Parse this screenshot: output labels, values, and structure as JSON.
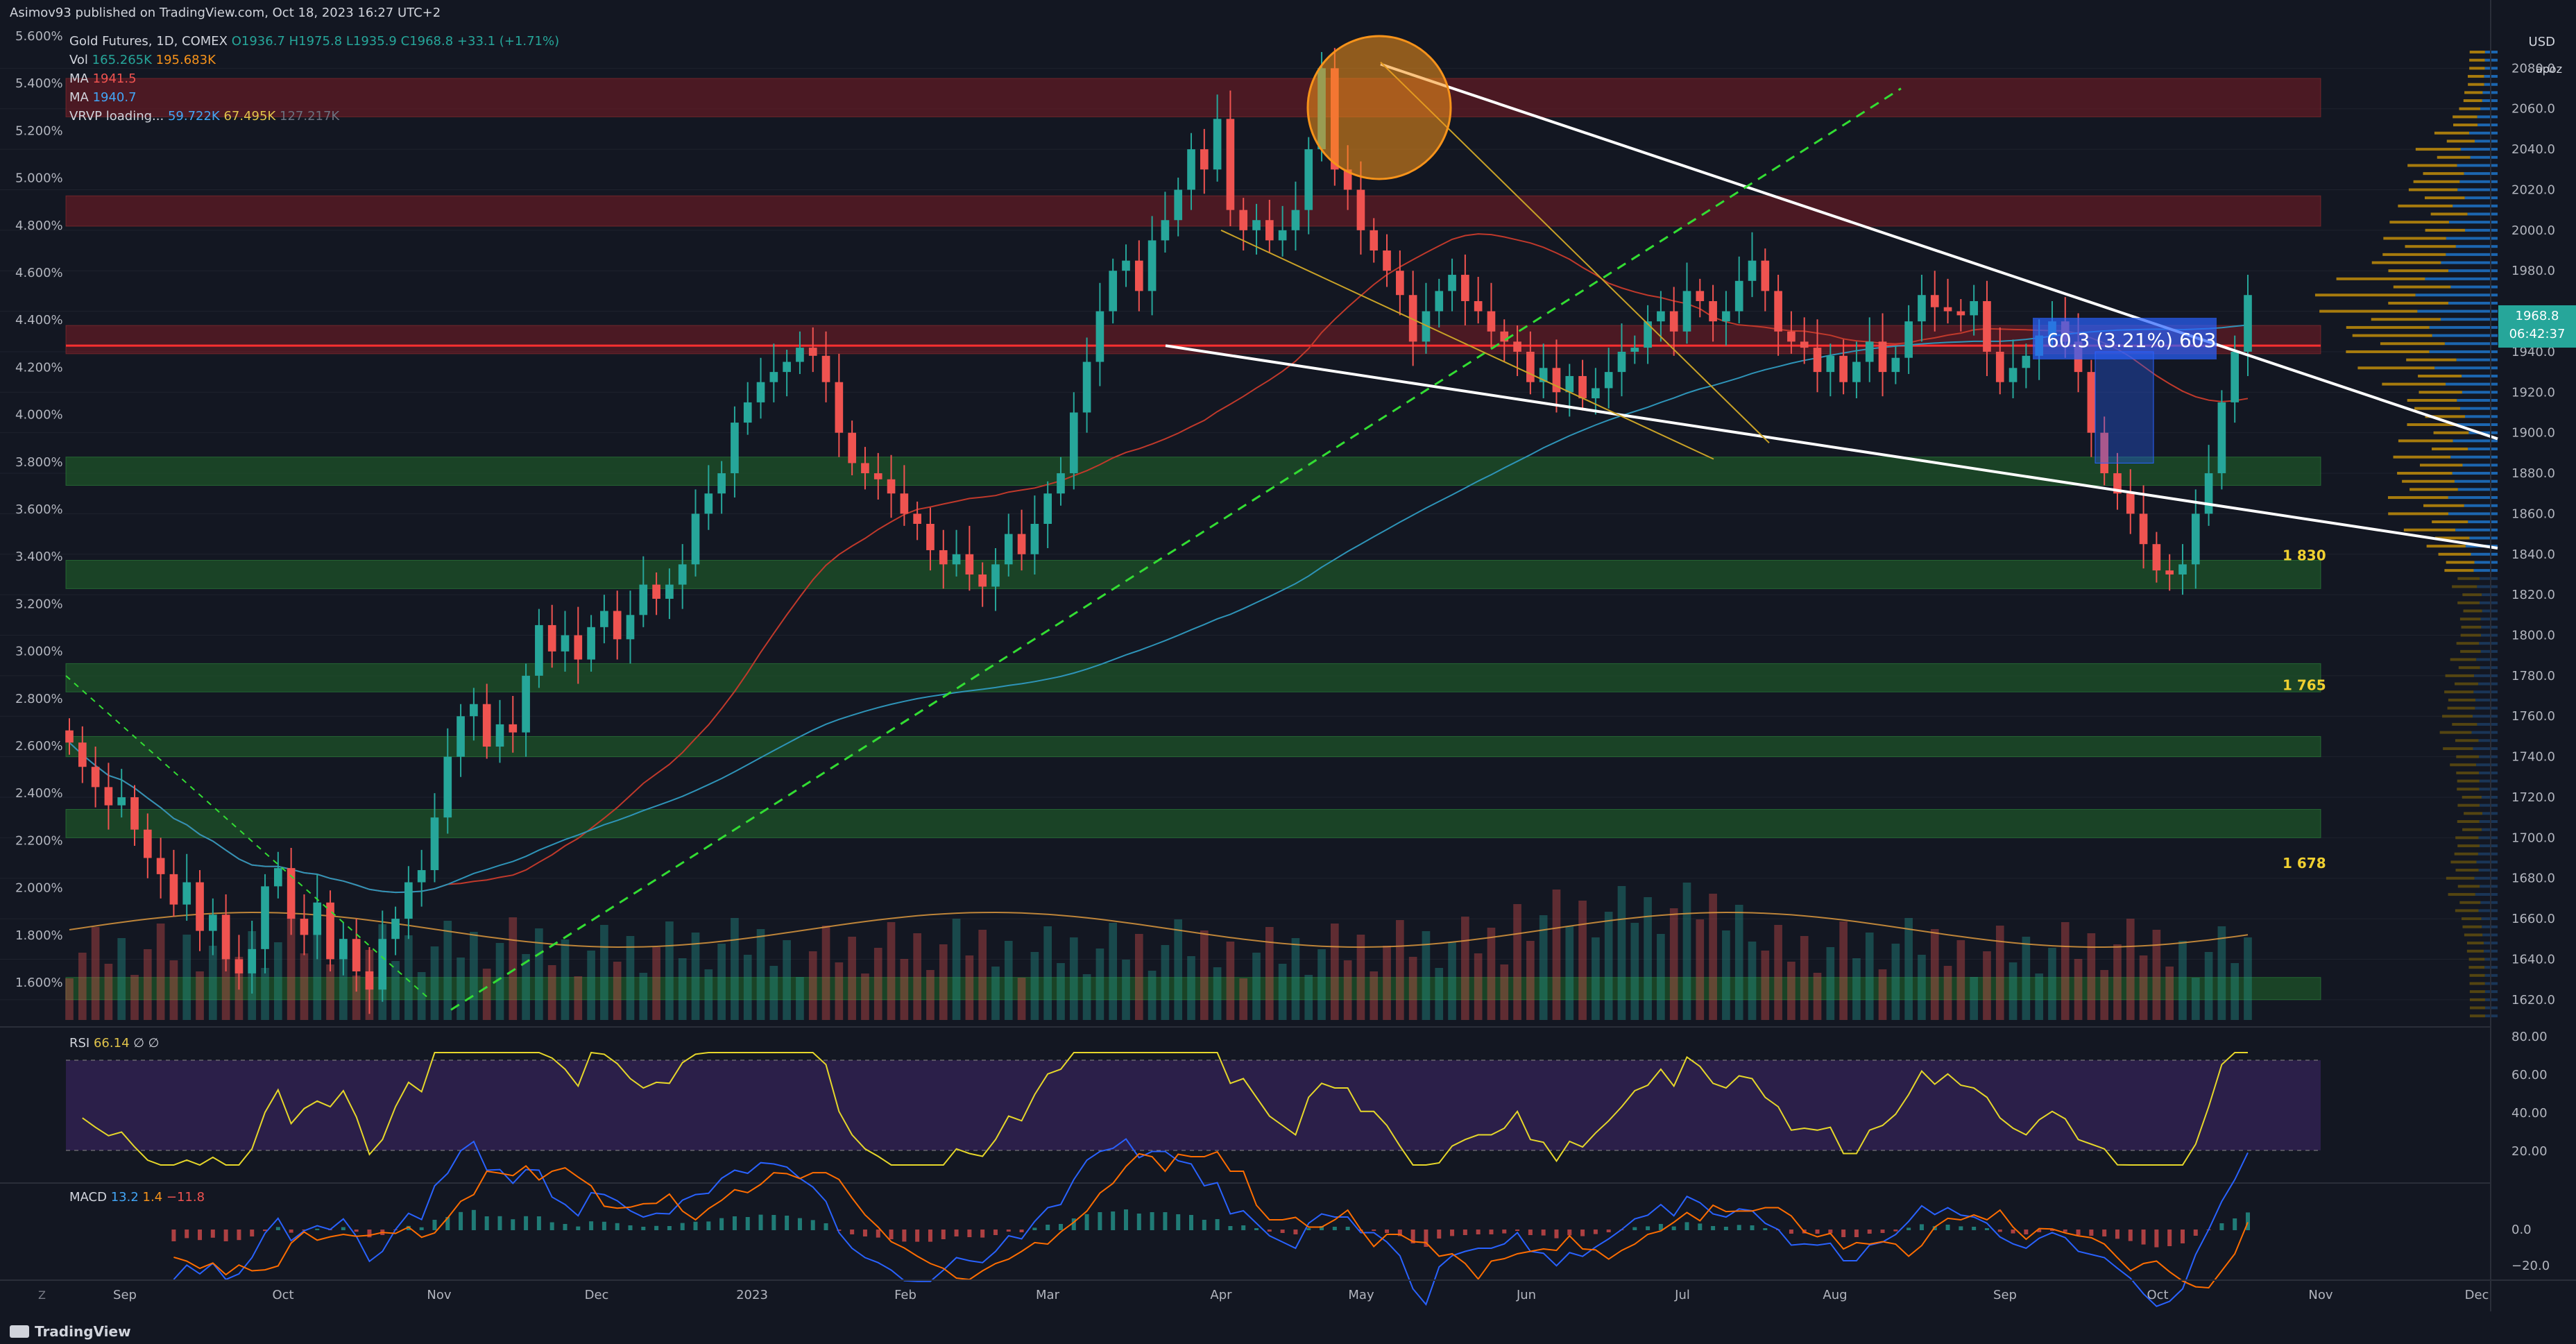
{
  "header": {
    "published": "Asimov93 published on TradingView.com, Oct 18, 2023 16:27 UTC+2",
    "symbol": "Gold Futures, 1D, COMEX",
    "o": "O1936.7",
    "h": "H1975.8",
    "l": "L1935.9",
    "c": "C1968.8",
    "chg": "+33.1 (+1.71%)",
    "vol_label": "Vol",
    "vol1": "165.265K",
    "vol2": "195.683K",
    "ma1_label": "MA",
    "ma1": "1941.5",
    "ma2_label": "MA",
    "ma2": "1940.7",
    "vrvp_label": "VRVP loading...",
    "vrvp1": "59.722K",
    "vrvp2": "67.495K",
    "vrvp3": "127.217K"
  },
  "right_panel": {
    "currency": "USD",
    "account": "apoz",
    "last_price": "1968.8",
    "countdown": "06:42:37"
  },
  "rsi": {
    "label": "RSI",
    "value": "66.14",
    "extra": "∅ ∅",
    "axis": [
      "80.00",
      "60.00",
      "40.00",
      "20.00"
    ]
  },
  "macd": {
    "label": "MACD",
    "v1": "13.2",
    "v2": "1.4",
    "v3": "−11.8",
    "axis": [
      "0.0",
      "−20.0"
    ]
  },
  "footer": {
    "brand": "TradingView",
    "zoom": "Z"
  },
  "colors": {
    "up": "#26a69a",
    "down": "#ef5350",
    "bg": "#131722",
    "supply": "#7a1c24",
    "demand": "#1f5a2a",
    "ma_blue": "#2e94b8",
    "ma_red": "#c0392b",
    "rsi": "#e6d72a"
  },
  "chart_data": {
    "type": "candlestick",
    "y_axis_right": {
      "min": 1610,
      "max": 2100,
      "ticks": [
        2080,
        2060,
        2040,
        2020,
        2000,
        1980,
        1960,
        1940,
        1920,
        1900,
        1880,
        1860,
        1840,
        1820,
        1800,
        1780,
        1760,
        1740,
        1720,
        1700,
        1680,
        1660,
        1640,
        1620
      ]
    },
    "y_axis_left_percent": [
      "5.600%",
      "5.400%",
      "5.200%",
      "5.000%",
      "4.800%",
      "4.600%",
      "4.400%",
      "4.200%",
      "4.000%",
      "3.800%",
      "3.600%",
      "3.400%",
      "3.200%",
      "3.000%",
      "2.800%",
      "2.600%",
      "2.400%",
      "2.200%",
      "2.000%",
      "1.800%",
      "1.600%"
    ],
    "x_axis": [
      "Sep",
      "Oct",
      "Nov",
      "Dec",
      "2023",
      "Feb",
      "Mar",
      "Apr",
      "May",
      "Jun",
      "Jul",
      "Aug",
      "Sep",
      "Oct",
      "Nov",
      "Dec"
    ],
    "closes": [
      1747,
      1735,
      1725,
      1716,
      1720,
      1704,
      1690,
      1682,
      1667,
      1678,
      1654,
      1662,
      1640,
      1633,
      1645,
      1676,
      1685,
      1660,
      1652,
      1668,
      1640,
      1650,
      1634,
      1625,
      1650,
      1660,
      1678,
      1684,
      1710,
      1740,
      1760,
      1766,
      1745,
      1756,
      1752,
      1780,
      1805,
      1792,
      1800,
      1788,
      1804,
      1812,
      1798,
      1810,
      1825,
      1818,
      1825,
      1835,
      1860,
      1870,
      1880,
      1905,
      1915,
      1925,
      1930,
      1935,
      1942,
      1938,
      1925,
      1900,
      1885,
      1880,
      1877,
      1870,
      1860,
      1855,
      1842,
      1835,
      1840,
      1830,
      1824,
      1835,
      1850,
      1840,
      1855,
      1870,
      1880,
      1910,
      1935,
      1960,
      1980,
      1985,
      1970,
      1995,
      2005,
      2020,
      2040,
      2030,
      2055,
      2010,
      2000,
      2005,
      1995,
      2000,
      2010,
      2040,
      2080,
      2030,
      2020,
      2000,
      1990,
      1980,
      1968,
      1945,
      1960,
      1970,
      1978,
      1965,
      1960,
      1950,
      1945,
      1940,
      1925,
      1932,
      1920,
      1928,
      1917,
      1922,
      1930,
      1940,
      1942,
      1955,
      1960,
      1950,
      1970,
      1965,
      1955,
      1960,
      1975,
      1985,
      1970,
      1950,
      1945,
      1942,
      1930,
      1938,
      1925,
      1935,
      1945,
      1930,
      1937,
      1955,
      1968,
      1962,
      1960,
      1958,
      1965,
      1940,
      1925,
      1932,
      1938,
      1948,
      1955,
      1945,
      1930,
      1900,
      1880,
      1870,
      1860,
      1845,
      1832,
      1830,
      1835,
      1860,
      1880,
      1915,
      1940,
      1968
    ],
    "horizontal_labels": [
      "1 830",
      "1 765",
      "1 678"
    ],
    "annotation_box": "60.3 (3.21%) 603",
    "supply_zones": [
      [
        2056,
        2075
      ],
      [
        2002,
        2017
      ],
      [
        1939,
        1953
      ]
    ],
    "demand_zones": [
      [
        1874,
        1888
      ],
      [
        1823,
        1837
      ],
      [
        1772,
        1786
      ],
      [
        1740,
        1750
      ],
      [
        1700,
        1714
      ],
      [
        1620,
        1631
      ]
    ]
  }
}
